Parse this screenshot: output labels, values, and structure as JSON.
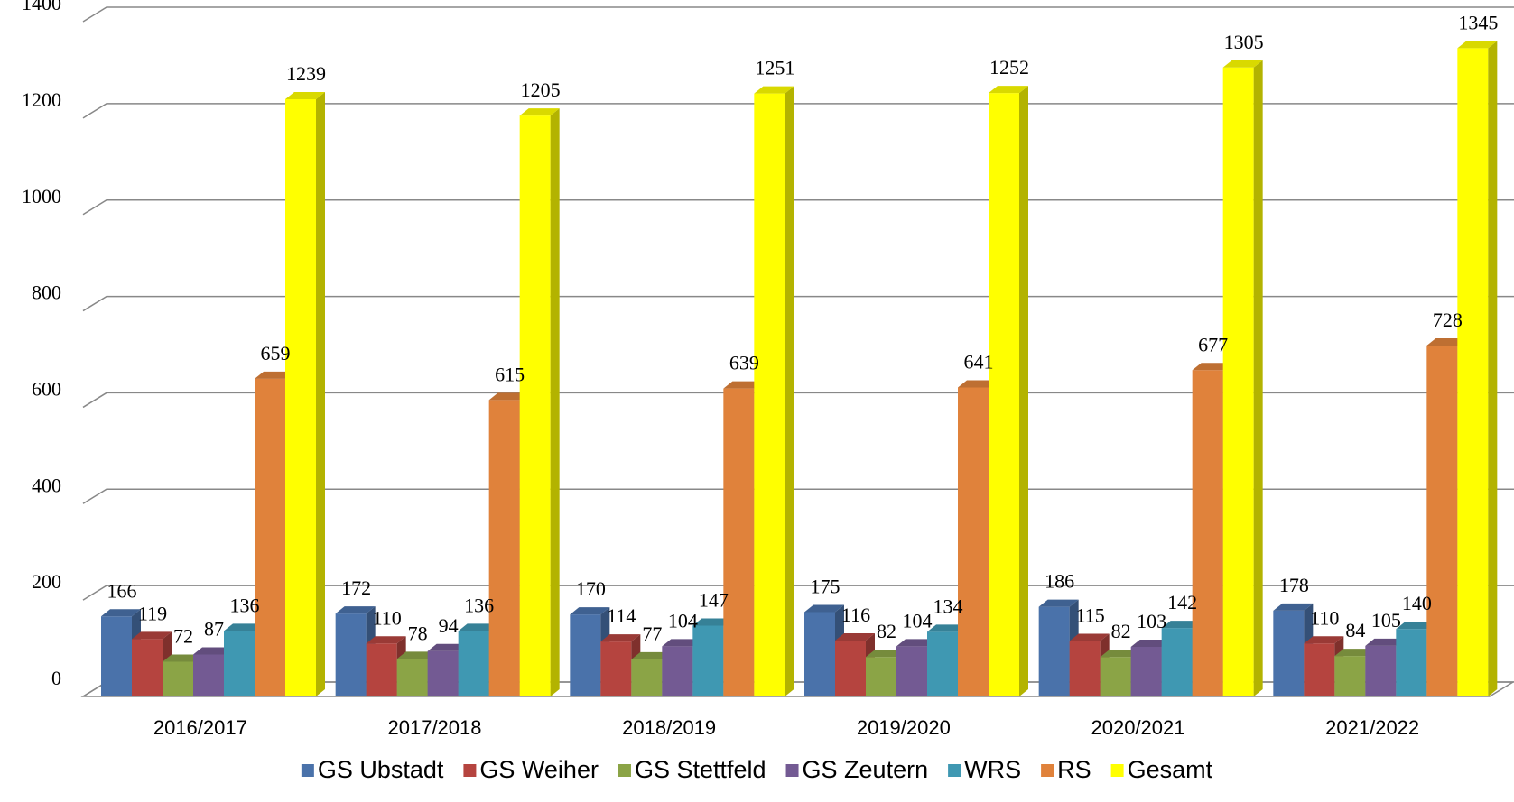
{
  "chart_data": {
    "type": "bar3d",
    "categories": [
      "2016/2017",
      "2017/2018",
      "2018/2019",
      "2019/2020",
      "2020/2021",
      "2021/2022"
    ],
    "series": [
      {
        "name": "GS Ubstadt",
        "color": "#4a72aa",
        "values": [
          166,
          172,
          170,
          175,
          186,
          178
        ]
      },
      {
        "name": "GS Weiher",
        "color": "#b5443f",
        "values": [
          119,
          110,
          114,
          116,
          115,
          110
        ]
      },
      {
        "name": "GS Stettfeld",
        "color": "#8ba446",
        "values": [
          72,
          78,
          77,
          82,
          82,
          84
        ]
      },
      {
        "name": "GS Zeutern",
        "color": "#735a93",
        "values": [
          87,
          94,
          104,
          104,
          103,
          105
        ]
      },
      {
        "name": "WRS",
        "color": "#3f98b2",
        "values": [
          136,
          136,
          147,
          134,
          142,
          140
        ]
      },
      {
        "name": "RS",
        "color": "#e0823b",
        "values": [
          659,
          615,
          639,
          641,
          677,
          728
        ]
      },
      {
        "name": "Gesamt",
        "color": "#ffff00",
        "values": [
          1239,
          1205,
          1251,
          1252,
          1305,
          1345
        ]
      }
    ],
    "ylim": [
      0,
      1400
    ],
    "yticks": [
      0,
      200,
      400,
      600,
      800,
      1000,
      1200,
      1400
    ],
    "grid": true,
    "legend": "bottom"
  }
}
